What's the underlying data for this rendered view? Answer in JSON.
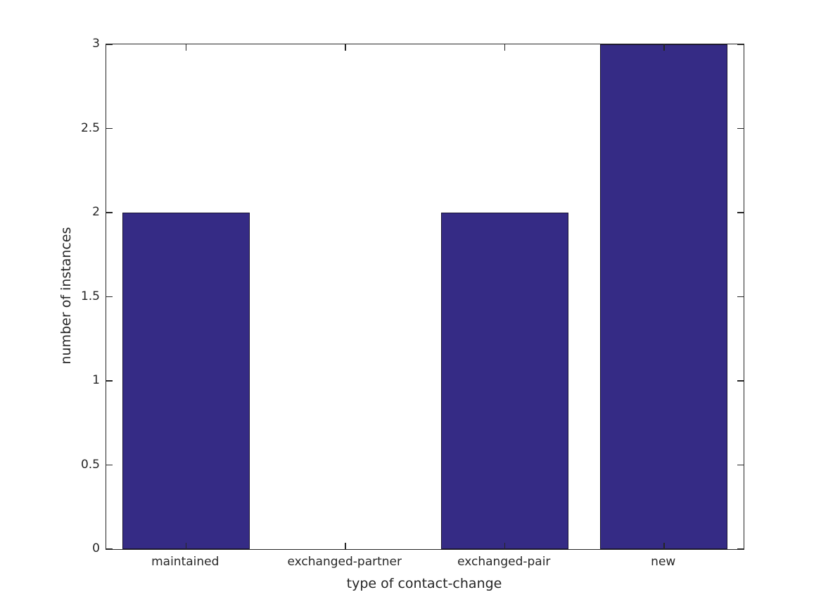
{
  "chart_data": {
    "type": "bar",
    "categories": [
      "maintained",
      "exchanged-partner",
      "exchanged-pair",
      "new"
    ],
    "values": [
      2,
      0,
      2,
      3
    ],
    "xlabel": "type of contact-change",
    "ylabel": "number of instances",
    "ylim": [
      0,
      3
    ],
    "yticks": [
      0,
      0.5,
      1,
      1.5,
      2,
      2.5,
      3
    ],
    "ytick_labels": [
      "0",
      "0.5",
      "1",
      "1.5",
      "2",
      "2.5",
      "3"
    ],
    "bar_width_fraction": 0.8,
    "bar_color": "#352b85",
    "bar_edge_color": "#1a1433",
    "axis_color": "#262626",
    "text_color": "#262626",
    "background": "#ffffff",
    "grid": false,
    "legend": false,
    "box": true
  }
}
